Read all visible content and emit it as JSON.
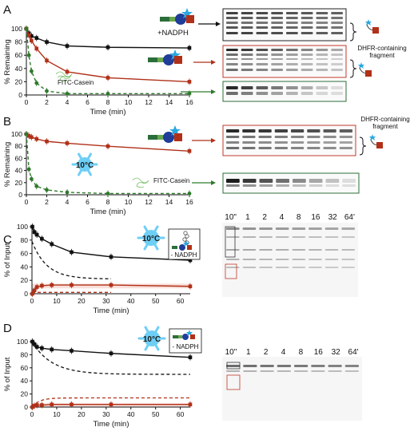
{
  "panels": {
    "A": {
      "label": "A",
      "nadph_label": "+NADPH",
      "dhfr_label_1": "DHFR-containing",
      "dhfr_label_2": "fragment",
      "casein_label": "FITC-Casein"
    },
    "B": {
      "label": "B",
      "temp_label": "10°C",
      "dhfr_label_1": "DHFR-containing",
      "dhfr_label_2": "fragment",
      "casein_label": "FITC-Casein"
    },
    "C": {
      "label": "C",
      "temp_label": "10°C",
      "nadph_label": "- NADPH",
      "lanes": [
        "10\"",
        "1",
        "2",
        "4",
        "8",
        "16",
        "32",
        "64'"
      ]
    },
    "D": {
      "label": "D",
      "temp_label": "10°C",
      "nadph_label": "- NADPH",
      "lanes": [
        "10\"",
        "1",
        "2",
        "4",
        "8",
        "16",
        "32",
        "64'"
      ]
    }
  },
  "colors": {
    "black": "#111111",
    "red": "#b03018",
    "green": "#2f7a2c",
    "gel_box_black": "#222222",
    "gel_box_red": "#c0392b",
    "gel_box_green": "#2c6e3a",
    "snow": "#6ecff6"
  },
  "chart_data": [
    {
      "panel": "A",
      "type": "line",
      "xlabel": "Time (min)",
      "ylabel": "% Remaining",
      "xlim": [
        0,
        16
      ],
      "ylim": [
        0,
        100
      ],
      "xticks": [
        0,
        2,
        4,
        6,
        8,
        10,
        12,
        14,
        16
      ],
      "yticks": [
        0,
        20,
        40,
        60,
        80,
        100
      ],
      "series": [
        {
          "color": "black",
          "x": [
            0,
            0.25,
            0.5,
            1,
            2,
            4,
            8,
            16
          ],
          "y": [
            100,
            93,
            89,
            86,
            80,
            74,
            72,
            71
          ]
        },
        {
          "color": "red",
          "x": [
            0,
            0.25,
            0.5,
            1,
            2,
            4,
            8,
            16
          ],
          "y": [
            100,
            90,
            82,
            70,
            52,
            35,
            26,
            20
          ]
        },
        {
          "color": "green",
          "x": [
            0,
            0.25,
            0.5,
            1,
            2,
            4,
            8,
            16
          ],
          "y": [
            100,
            60,
            36,
            18,
            6,
            2,
            2,
            2
          ]
        }
      ]
    },
    {
      "panel": "B",
      "type": "line",
      "xlabel": "Time (min)",
      "ylabel": "% Remaining",
      "xlim": [
        0,
        16
      ],
      "ylim": [
        0,
        100
      ],
      "xticks": [
        0,
        2,
        4,
        6,
        8,
        10,
        12,
        14,
        16
      ],
      "yticks": [
        0,
        20,
        40,
        60,
        80,
        100
      ],
      "series": [
        {
          "color": "red",
          "x": [
            0,
            0.25,
            0.5,
            1,
            2,
            4,
            8,
            16
          ],
          "y": [
            100,
            97,
            95,
            92,
            88,
            85,
            80,
            72
          ]
        },
        {
          "color": "green",
          "x": [
            0,
            0.25,
            0.5,
            1,
            2,
            4,
            8,
            16
          ],
          "y": [
            100,
            42,
            26,
            14,
            8,
            4,
            2,
            2
          ]
        }
      ]
    },
    {
      "panel": "C",
      "type": "line",
      "xlabel": "Time (min)",
      "ylabel": "% of Input",
      "xlim": [
        0,
        64
      ],
      "ylim": [
        0,
        100
      ],
      "xticks": [
        0,
        10,
        20,
        30,
        40,
        50,
        60
      ],
      "yticks": [
        0,
        20,
        40,
        60,
        80,
        100
      ],
      "series": [
        {
          "color": "black",
          "x": [
            0.17,
            1,
            2,
            4,
            8,
            16,
            32,
            64
          ],
          "y": [
            100,
            92,
            88,
            82,
            74,
            62,
            55,
            50
          ]
        },
        {
          "color": "red",
          "x": [
            0.17,
            1,
            2,
            4,
            8,
            16,
            32,
            64
          ],
          "y": [
            0,
            5,
            10,
            12,
            13,
            13,
            13,
            11
          ]
        }
      ]
    },
    {
      "panel": "D",
      "type": "line",
      "xlabel": "Time (min)",
      "ylabel": "% of Input",
      "xlim": [
        0,
        64
      ],
      "ylim": [
        0,
        100
      ],
      "xticks": [
        0,
        10,
        20,
        30,
        40,
        50,
        60
      ],
      "yticks": [
        0,
        20,
        40,
        60,
        80,
        100
      ],
      "series": [
        {
          "color": "black",
          "x": [
            0.17,
            1,
            2,
            4,
            8,
            16,
            32,
            64
          ],
          "y": [
            100,
            96,
            92,
            90,
            88,
            86,
            82,
            76
          ]
        },
        {
          "color": "red",
          "x": [
            0.17,
            1,
            2,
            4,
            8,
            16,
            32,
            64
          ],
          "y": [
            0,
            2,
            3,
            3,
            4,
            4,
            4,
            4
          ]
        }
      ]
    }
  ]
}
